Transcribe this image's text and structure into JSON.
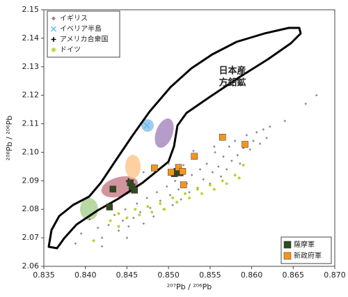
{
  "chart_data": {
    "type": "scatter",
    "x_label": "²⁰⁷Pb / ²⁰⁶Pb",
    "y_label": "²⁰⁸Pb / ²⁰⁶Pb",
    "annotation_lines": [
      "日本産",
      "方鉛鉱"
    ],
    "xlim": [
      0.835,
      0.87
    ],
    "ylim": [
      2.06,
      2.15
    ],
    "xticks": [
      {
        "value": 0.835,
        "label": "0.835"
      },
      {
        "value": 0.84,
        "label": "0.840"
      },
      {
        "value": 0.845,
        "label": "0.845"
      },
      {
        "value": 0.85,
        "label": "0.850"
      },
      {
        "value": 0.855,
        "label": "0.855"
      },
      {
        "value": 0.86,
        "label": "0.860"
      },
      {
        "value": 0.865,
        "label": "0.865"
      },
      {
        "value": 0.87,
        "label": "0.870"
      }
    ],
    "yticks": [
      {
        "value": 2.06,
        "label": "2.06"
      },
      {
        "value": 2.07,
        "label": "2.07"
      },
      {
        "value": 2.08,
        "label": "2.08"
      },
      {
        "value": 2.09,
        "label": "2.09"
      },
      {
        "value": 2.1,
        "label": "2.10"
      },
      {
        "value": 2.11,
        "label": "2.11"
      },
      {
        "value": 2.12,
        "label": "2.12"
      },
      {
        "value": 2.13,
        "label": "2.13"
      },
      {
        "value": 2.14,
        "label": "2.14"
      },
      {
        "value": 2.15,
        "label": "2.15"
      }
    ],
    "series": [
      {
        "name": "イギリス",
        "color": "#8a8a8a",
        "marker": "diamond",
        "legend": "upper left",
        "x": [
          0.8388,
          0.8395,
          0.8405,
          0.8415,
          0.842,
          0.8428,
          0.8435,
          0.844,
          0.8445,
          0.8448,
          0.8452,
          0.8458,
          0.8462,
          0.8466,
          0.847,
          0.8474,
          0.8478,
          0.8482,
          0.8486,
          0.849,
          0.8494,
          0.8498,
          0.8502,
          0.8505,
          0.8508,
          0.8512,
          0.8515,
          0.8518,
          0.8522,
          0.8525,
          0.8528,
          0.8532,
          0.8535,
          0.8538,
          0.8542,
          0.8546,
          0.855,
          0.8553,
          0.8556,
          0.856,
          0.8563,
          0.8566,
          0.857,
          0.8573,
          0.8576,
          0.858,
          0.8583,
          0.8586,
          0.859,
          0.8594,
          0.8598,
          0.8602,
          0.8606,
          0.861,
          0.8614,
          0.8618,
          0.8622,
          0.864,
          0.8665,
          0.8678,
          0.847,
          0.85,
          0.853,
          0.8555,
          0.845,
          0.842
        ],
        "values": [
          2.068,
          2.0715,
          2.0765,
          2.0735,
          2.07,
          2.0745,
          2.078,
          2.0725,
          2.076,
          2.08,
          2.074,
          2.077,
          2.082,
          2.079,
          2.075,
          2.084,
          2.0805,
          2.0775,
          2.086,
          2.083,
          2.08,
          2.088,
          2.085,
          2.0815,
          2.09,
          2.087,
          2.0835,
          2.0955,
          2.089,
          2.086,
          2.092,
          2.098,
          2.0875,
          2.094,
          2.0905,
          2.096,
          2.089,
          2.093,
          2.1,
          2.095,
          2.0915,
          2.0985,
          2.094,
          2.102,
          2.097,
          2.104,
          2.099,
          2.096,
          2.1015,
          2.106,
          2.101,
          2.104,
          2.107,
          2.103,
          2.108,
          2.105,
          2.109,
          2.111,
          2.117,
          2.12,
          2.093,
          2.096,
          2.1005,
          2.102,
          2.07,
          2.067
        ]
      },
      {
        "name": "イベリア半島",
        "color": "#5bc0eb",
        "marker": "x",
        "legend": "upper left",
        "x": [
          0.8474
        ],
        "values": [
          2.1094
        ]
      },
      {
        "name": "アメリカ合衆国",
        "color": "#000000",
        "marker": "plus",
        "legend": "upper left",
        "x": [
          0.8452
        ],
        "values": [
          2.0899
        ]
      },
      {
        "name": "ドイツ",
        "color": "#b5d334",
        "marker": "asterisk",
        "legend": "upper left",
        "x": [
          0.843,
          0.844,
          0.845,
          0.846,
          0.8465,
          0.8475,
          0.848,
          0.849,
          0.8495,
          0.8505,
          0.851,
          0.852,
          0.8525,
          0.8535,
          0.854,
          0.855,
          0.8555,
          0.8565,
          0.857,
          0.858,
          0.8585,
          0.859,
          0.841,
          0.844
        ],
        "values": [
          2.076,
          2.0785,
          2.077,
          2.08,
          2.078,
          2.081,
          2.079,
          2.082,
          2.08,
          2.084,
          2.0825,
          2.0855,
          2.084,
          2.087,
          2.0855,
          2.0885,
          2.087,
          2.09,
          2.089,
          2.092,
          2.091,
          2.0955,
          2.069,
          2.074
        ]
      },
      {
        "name": "薩摩軍",
        "color": "#2f4a1f",
        "marker": "square",
        "legend": "lower right",
        "x": [
          0.8433,
          0.8429,
          0.8454,
          0.8456,
          0.8459,
          0.8507,
          0.851,
          0.8514
        ],
        "values": [
          2.0871,
          2.0808,
          2.0893,
          2.0879,
          2.0867,
          2.0925,
          2.0933,
          2.0928
        ]
      },
      {
        "name": "新政府軍",
        "color": "#f7941d",
        "marker": "square",
        "legend": "lower right",
        "x": [
          0.8483,
          0.8503,
          0.8512,
          0.8517,
          0.8531,
          0.8518,
          0.8565,
          0.8592
        ],
        "values": [
          2.0945,
          2.093,
          2.0947,
          2.0933,
          2.0986,
          2.0886,
          2.1053,
          2.1028
        ]
      }
    ]
  }
}
